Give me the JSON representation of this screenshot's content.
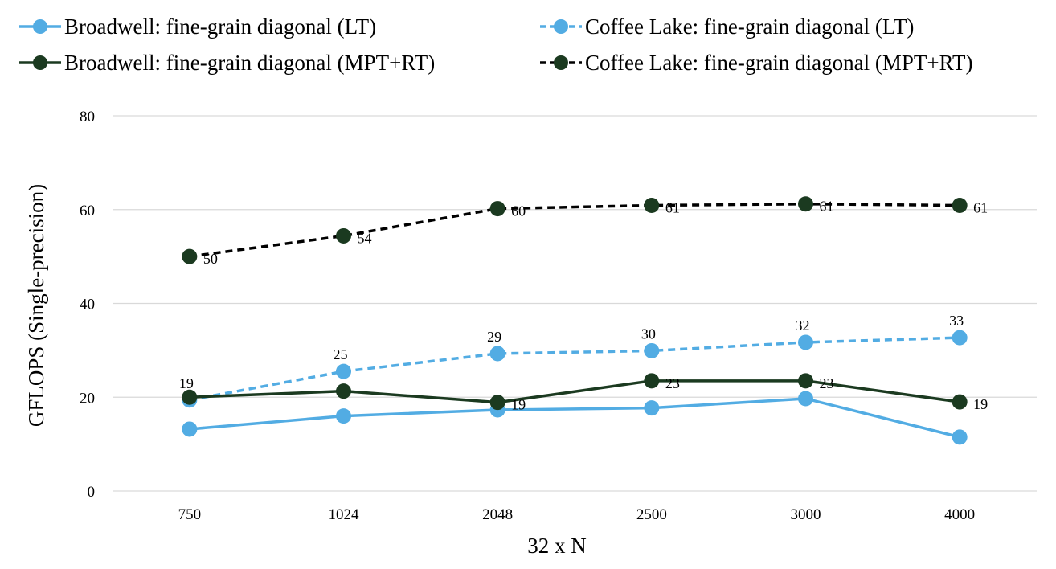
{
  "chart_data": {
    "type": "line",
    "title": "",
    "xlabel": "32 x N",
    "ylabel": "GFLOPS (Single-precision)",
    "categories": [
      "750",
      "1024",
      "2048",
      "2500",
      "3000",
      "4000"
    ],
    "ylim": [
      0,
      80
    ],
    "yticks": [
      "0",
      "20",
      "40",
      "60",
      "80"
    ],
    "grid": true,
    "legend": "top",
    "series": [
      {
        "name": "Broadwell: fine-grain diagonal (LT)",
        "values": [
          13.2,
          16.0,
          17.3,
          17.7,
          19.7,
          11.5
        ],
        "labels": [
          "",
          "",
          "",
          "",
          "",
          ""
        ],
        "color": "#52ace3",
        "dashed": false
      },
      {
        "name": "Coffee Lake: fine-grain diagonal (LT)",
        "values": [
          19.4,
          25.5,
          29.3,
          29.9,
          31.7,
          32.7
        ],
        "labels": [
          "19",
          "25",
          "29",
          "30",
          "32",
          "33"
        ],
        "color": "#52ace3",
        "dashed": true
      },
      {
        "name": "Broadwell: fine-grain diagonal (MPT+RT)",
        "values": [
          20.0,
          21.3,
          18.9,
          23.5,
          23.5,
          19.0
        ],
        "labels": [
          "",
          "",
          "19",
          "23",
          "23",
          "19"
        ],
        "color": "#1b3a20",
        "dashed": false
      },
      {
        "name": "Coffee Lake: fine-grain diagonal (MPT+RT)",
        "values": [
          50.0,
          54.4,
          60.2,
          60.9,
          61.2,
          60.9
        ],
        "labels": [
          "50",
          "54",
          "60",
          "61",
          "61",
          "61"
        ],
        "color": "#000000",
        "marker_color": "#1b3a20",
        "dashed": true
      }
    ]
  }
}
